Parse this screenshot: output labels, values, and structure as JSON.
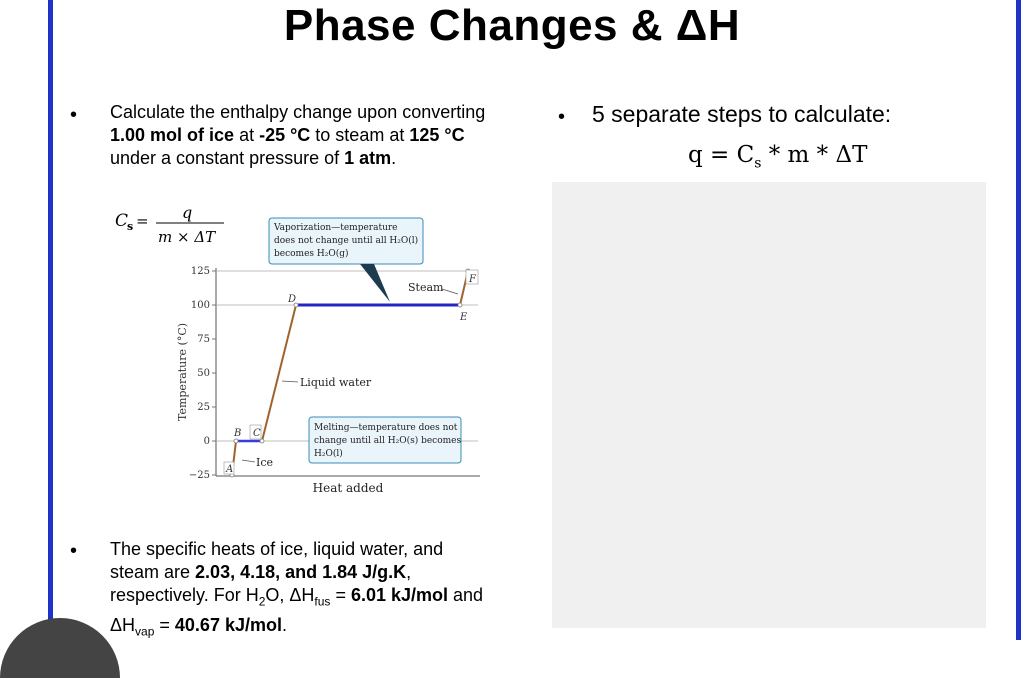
{
  "title": "Phase Changes & ΔH",
  "problem": {
    "l1": "Calculate the enthalpy change upon converting",
    "l2_b1": "1.00 mol of ice",
    "l2_t1": " at ",
    "l2_b2": "-25 °C",
    "l2_t2": " to steam at ",
    "l2_b3": "125 °C",
    "l3_t": "under a constant pressure of ",
    "l3_b": "1 atm",
    "l3_end": "."
  },
  "right": {
    "steps": "5 separate steps to calculate:",
    "formula": "q = C",
    "formula_sub": "s",
    "formula_rest": " * m * ΔT"
  },
  "cs_eq": {
    "lhs": "C",
    "lhs_sub": "s",
    "num": "q",
    "den": "m × ΔT"
  },
  "graph": {
    "ylabel": "Temperature (°C)",
    "xlabel": "Heat added",
    "yticks": [
      "125",
      "100",
      "75",
      "50",
      "25",
      "0",
      "−25"
    ],
    "points": [
      "A",
      "B",
      "C",
      "D",
      "E",
      "F"
    ],
    "labels": {
      "steam": "Steam",
      "liquid": "Liquid water",
      "ice": "Ice"
    },
    "vap_box": [
      "Vaporization—temperature",
      "does not change until all H₂O(l)",
      "becomes H₂O(g)"
    ],
    "melt_box": [
      "Melting—temperature does not",
      "change until all H₂O(s) becomes",
      "H₂O(l)"
    ]
  },
  "specific": {
    "t1": "The specific heats of ice, liquid water, and",
    "t2": "steam are ",
    "b1": "2.03, 4.18, and 1.84 J/g.K",
    "t2b": ",",
    "t3": "respectively. For H",
    "t3_sub": "2",
    "t3b": "O, ΔH",
    "t3_sub2": "fus",
    "t3c": " = ",
    "b2": "6.01 kJ/mol",
    "t3d": " and",
    "t4": "ΔH",
    "t4_sub": "vap",
    "t4b": " = ",
    "b3": "40.67 kJ/mol",
    "t4c": "."
  }
}
